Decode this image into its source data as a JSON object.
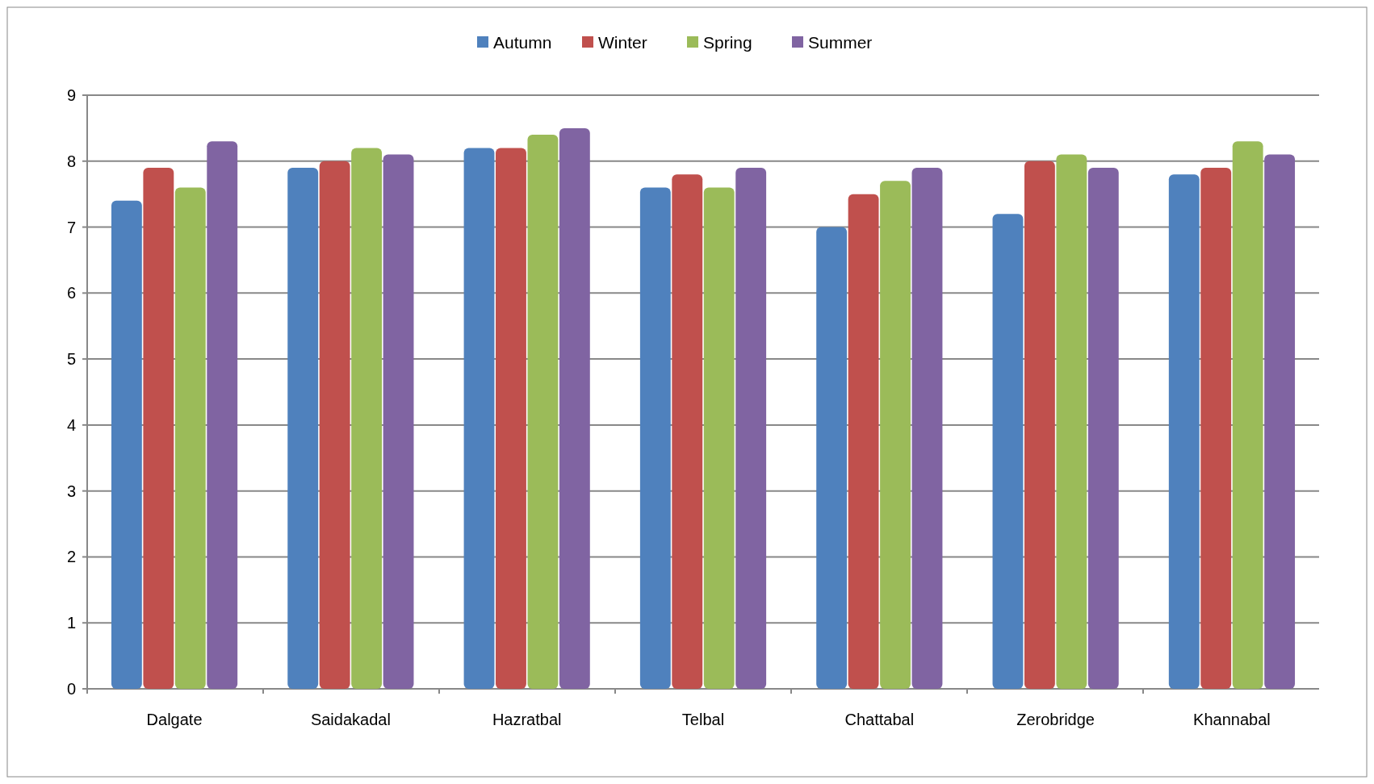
{
  "chart_data": {
    "type": "bar",
    "categories": [
      "Dalgate",
      "Saidakadal",
      "Hazratbal",
      "Telbal",
      "Chattabal",
      "Zerobridge",
      "Khannabal"
    ],
    "series": [
      {
        "name": "Autumn",
        "color": "#4f81bd",
        "values": [
          7.4,
          7.9,
          8.2,
          7.6,
          7.0,
          7.2,
          7.8
        ]
      },
      {
        "name": "Winter",
        "color": "#c0504d",
        "values": [
          7.9,
          8.0,
          8.2,
          7.8,
          7.5,
          8.0,
          7.9
        ]
      },
      {
        "name": "Spring",
        "color": "#9bbb59",
        "values": [
          7.6,
          8.2,
          8.4,
          7.6,
          7.7,
          8.1,
          8.3
        ]
      },
      {
        "name": "Summer",
        "color": "#8064a2",
        "values": [
          8.3,
          8.1,
          8.5,
          7.9,
          7.9,
          7.9,
          8.1
        ]
      }
    ],
    "ylim": [
      0,
      9
    ],
    "yticks": [
      0,
      1,
      2,
      3,
      4,
      5,
      6,
      7,
      8,
      9
    ],
    "grid": "y",
    "legend": "top"
  }
}
